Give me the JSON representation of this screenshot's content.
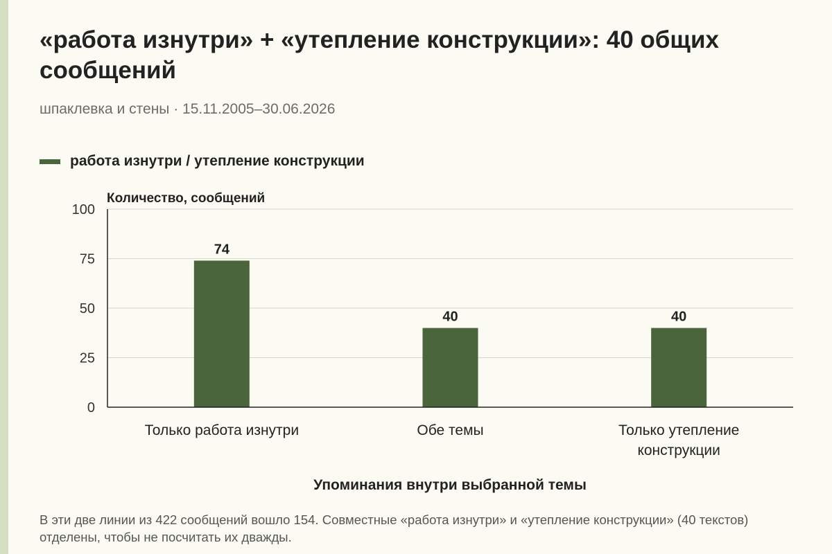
{
  "title": "«работа изнутри» + «утепление конструкции»: 40 общих сообщений",
  "subtitle": "шпаклевка и стены · 15.11.2005–30.06.2026",
  "colors": {
    "bar": "#4a653b",
    "accent_strip": "#d5dfc3",
    "background": "#fcfbf3"
  },
  "note": "В эти две линии из 422 сообщений вошло 154. Совместные «работа изнутри» и «утепление конструкции» (40 текстов) отделены, чтобы не посчитать их дважды.",
  "chart_data": {
    "type": "bar",
    "categories": [
      [
        "Только работа изнутри"
      ],
      [
        "Обе темы"
      ],
      [
        "Только утепление",
        "конструкции"
      ]
    ],
    "series": [
      {
        "name": "работа изнутри / утепление конструкции",
        "values": [
          74,
          40,
          40
        ]
      }
    ],
    "ylabel": "Количество, сообщений",
    "xlabel": "Упоминания внутри выбранной темы",
    "ylim": [
      0,
      100
    ],
    "yticks": [
      0,
      25,
      50,
      75,
      100
    ],
    "grid": true,
    "legend": "top-left",
    "data_labels": true
  }
}
